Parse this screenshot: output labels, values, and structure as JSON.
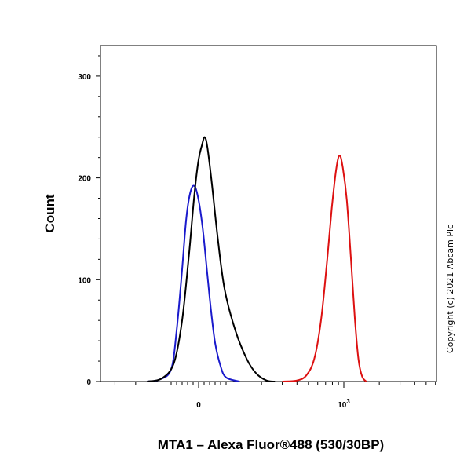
{
  "chart_data": {
    "type": "line",
    "title": "",
    "xlabel": "MTA1 – Alexa Fluor®488 (530/30BP)",
    "ylabel": "Count",
    "x_scale": "biexponential",
    "x_tick_labels": [
      "0",
      "10^3"
    ],
    "y_ticks": [
      0,
      100,
      200,
      300
    ],
    "ylim": [
      0,
      330
    ],
    "grid": false,
    "series": [
      {
        "color": "#1a1acc",
        "points": [
          [
            -160,
            0
          ],
          [
            -125,
            2
          ],
          [
            -100,
            12
          ],
          [
            -80,
            50
          ],
          [
            -60,
            110
          ],
          [
            -45,
            160
          ],
          [
            -30,
            186
          ],
          [
            -15,
            192
          ],
          [
            0,
            178
          ],
          [
            15,
            150
          ],
          [
            30,
            110
          ],
          [
            45,
            70
          ],
          [
            60,
            38
          ],
          [
            80,
            15
          ],
          [
            100,
            4
          ],
          [
            130,
            0
          ]
        ]
      },
      {
        "color": "#000000",
        "points": [
          [
            -160,
            0
          ],
          [
            -120,
            3
          ],
          [
            -90,
            18
          ],
          [
            -60,
            60
          ],
          [
            -35,
            125
          ],
          [
            -15,
            185
          ],
          [
            0,
            218
          ],
          [
            12,
            232
          ],
          [
            22,
            240
          ],
          [
            32,
            230
          ],
          [
            48,
            195
          ],
          [
            70,
            140
          ],
          [
            95,
            90
          ],
          [
            120,
            50
          ],
          [
            150,
            22
          ],
          [
            180,
            8
          ],
          [
            220,
            1
          ],
          [
            260,
            0
          ]
        ]
      },
      {
        "color": "#dd1111",
        "points": [
          [
            300,
            0
          ],
          [
            400,
            1
          ],
          [
            480,
            6
          ],
          [
            560,
            22
          ],
          [
            640,
            60
          ],
          [
            720,
            118
          ],
          [
            790,
            170
          ],
          [
            860,
            208
          ],
          [
            920,
            222
          ],
          [
            980,
            210
          ],
          [
            1060,
            178
          ],
          [
            1150,
            120
          ],
          [
            1240,
            62
          ],
          [
            1330,
            22
          ],
          [
            1430,
            5
          ],
          [
            1550,
            0
          ]
        ]
      }
    ]
  },
  "copyright": "Copyright (c) 2021 Abcam Plc"
}
